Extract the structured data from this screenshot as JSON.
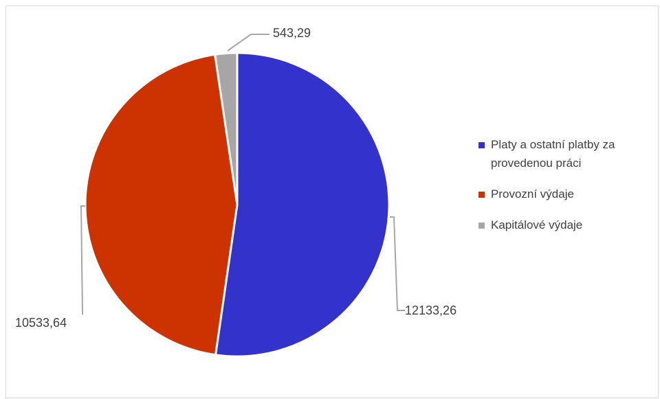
{
  "chart_data": {
    "type": "pie",
    "categories": [
      "Platy a ostatní platby za provedenou práci",
      "Provozní výdaje",
      "Kapitálové výdaje"
    ],
    "values": [
      12133.26,
      10533.64,
      543.29
    ],
    "value_labels": [
      "12133,26",
      "10533,64",
      "543,29"
    ],
    "colors": [
      "#3333cc",
      "#cc3300",
      "#a6a6a6"
    ],
    "legend_position": "right",
    "start_angle": "12 o'clock, clockwise"
  },
  "legend": {
    "items": [
      {
        "label": "Platy a ostatní platby za provedenou práci",
        "color": "#3333cc"
      },
      {
        "label": "Provozní výdaje",
        "color": "#cc3300"
      },
      {
        "label": "Kapitálové výdaje",
        "color": "#a6a6a6"
      }
    ]
  }
}
